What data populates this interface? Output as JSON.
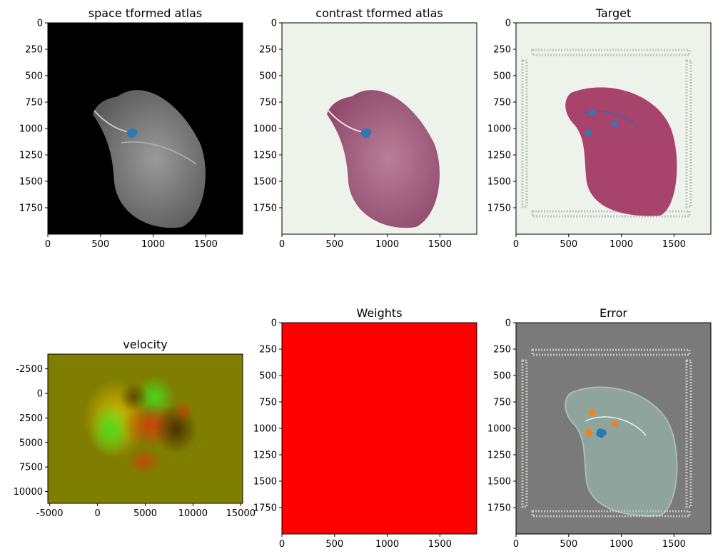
{
  "colors": {
    "black": "#000000",
    "paper": "#edf2ea",
    "tissue": "#a8446c",
    "point_blue": "#2a7bb5",
    "point_orange": "#ff7f0e",
    "grey": "#7a7a7a",
    "weights_red": "#ff0000",
    "velocity_bg": "#807e00",
    "velocity_red": "#d03a10",
    "velocity_green": "#40d410",
    "velocity_yellow": "#e6c000",
    "velocity_dark": "#503000"
  },
  "chart_data": [
    {
      "id": "space-atlas",
      "type": "image",
      "title": "space tformed atlas",
      "xticks": [
        0,
        500,
        1000,
        1500
      ],
      "yticks": [
        0,
        250,
        500,
        750,
        1000,
        1250,
        1500,
        1750
      ],
      "xlim": [
        0,
        1850
      ],
      "ylim": [
        2000,
        0
      ],
      "background": "black",
      "points": [
        {
          "color": "point_blue",
          "xy": [
            [
              780,
              1040
            ],
            [
              800,
              1030
            ],
            [
              810,
              1045
            ],
            [
              790,
              1055
            ],
            [
              820,
              1035
            ],
            [
              800,
              1060
            ]
          ]
        }
      ]
    },
    {
      "id": "contrast-atlas",
      "type": "image",
      "title": "contrast tformed atlas",
      "xticks": [
        0,
        500,
        1000,
        1500
      ],
      "yticks": [
        0,
        250,
        500,
        750,
        1000,
        1250,
        1500,
        1750
      ],
      "xlim": [
        0,
        1850
      ],
      "ylim": [
        2000,
        0
      ],
      "background": "paper",
      "points": [
        {
          "color": "point_blue",
          "xy": [
            [
              780,
              1040
            ],
            [
              800,
              1030
            ],
            [
              810,
              1045
            ],
            [
              790,
              1055
            ],
            [
              820,
              1035
            ],
            [
              800,
              1060
            ]
          ]
        }
      ]
    },
    {
      "id": "target",
      "type": "image",
      "title": "Target",
      "xticks": [
        0,
        500,
        1000,
        1500
      ],
      "yticks": [
        0,
        250,
        500,
        750,
        1000,
        1250,
        1500,
        1750
      ],
      "xlim": [
        0,
        1850
      ],
      "ylim": [
        2000,
        0
      ],
      "background": "paper",
      "points": [
        {
          "color": "point_blue",
          "xy": [
            [
              720,
              850
            ],
            [
              940,
              955
            ],
            [
              690,
              1040
            ]
          ]
        }
      ]
    },
    {
      "id": "velocity",
      "type": "image",
      "title": "velocity",
      "xticks": [
        -5000,
        0,
        5000,
        10000,
        15000
      ],
      "yticks": [
        -2500,
        0,
        2500,
        5000,
        7500,
        10000
      ],
      "xlim": [
        -5200,
        15200
      ],
      "ylim": [
        11200,
        -4000
      ],
      "background": "velocity_bg",
      "points": []
    },
    {
      "id": "weights",
      "type": "image",
      "title": "Weights",
      "xticks": [
        0,
        500,
        1000,
        1500
      ],
      "yticks": [
        0,
        250,
        500,
        750,
        1000,
        1250,
        1500,
        1750
      ],
      "xlim": [
        0,
        1850
      ],
      "ylim": [
        2000,
        0
      ],
      "background": "weights_red",
      "points": []
    },
    {
      "id": "error",
      "type": "image",
      "title": "Error",
      "xticks": [
        0,
        500,
        1000,
        1500
      ],
      "yticks": [
        0,
        250,
        500,
        750,
        1000,
        1250,
        1500,
        1750
      ],
      "xlim": [
        0,
        1850
      ],
      "ylim": [
        2000,
        0
      ],
      "background": "grey",
      "points": [
        {
          "color": "point_orange",
          "xy": [
            [
              720,
              850
            ],
            [
              940,
              955
            ],
            [
              690,
              1040
            ]
          ]
        },
        {
          "color": "point_blue",
          "xy": [
            [
              800,
              1030
            ],
            [
              820,
              1045
            ],
            [
              790,
              1050
            ],
            [
              830,
              1040
            ],
            [
              810,
              1060
            ]
          ]
        }
      ]
    }
  ]
}
